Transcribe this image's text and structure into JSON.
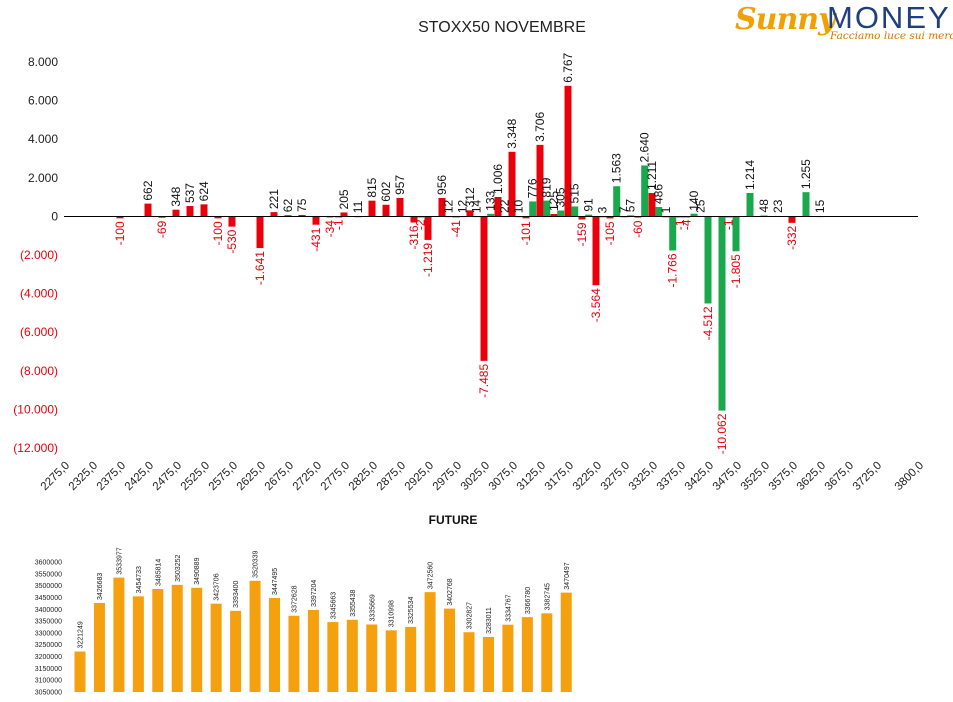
{
  "logo": {
    "brand_first": "Sunny",
    "brand_second": "MONEY",
    "tagline": "Facciamo luce sui mercati"
  },
  "chart_data": [
    {
      "type": "bar",
      "title": "STOXX50 NOVEMBRE",
      "xlabel": "",
      "ylabel": "",
      "ylim": [
        -12000,
        8000
      ],
      "y_ticks": [
        8000,
        6000,
        4000,
        2000,
        0,
        -2000,
        -4000,
        -6000,
        -8000,
        -10000,
        -12000
      ],
      "y_tick_labels": [
        "8.000",
        "6.000",
        "4.000",
        "2.000",
        "0",
        "(2.000)",
        "(4.000)",
        "(6.000)",
        "(8.000)",
        "(10.000)",
        "(12.000)"
      ],
      "x_ticks": [
        "2275,0",
        "2325,0",
        "2375,0",
        "2425,0",
        "2475,0",
        "2525,0",
        "2575,0",
        "2625,0",
        "2675,0",
        "2725,0",
        "2775,0",
        "2825,0",
        "2875,0",
        "2925,0",
        "2975,0",
        "3025,0",
        "3075,0",
        "3125,0",
        "3175,0",
        "3225,0",
        "3275,0",
        "3325,0",
        "3375,0",
        "3425,0",
        "3475,0",
        "3525,0",
        "3575,0",
        "3625,0",
        "3675,0",
        "3725,0",
        "3800,0"
      ],
      "grid": false,
      "legend": "none",
      "colors": {
        "put": "#e8000b",
        "call": "#19a84b"
      },
      "bars": [
        {
          "strike": 2375,
          "value": -100,
          "label": "-100",
          "series": "put"
        },
        {
          "strike": 2425,
          "value": 662,
          "label": "662",
          "series": "put"
        },
        {
          "strike": 2450,
          "value": -69,
          "label": "-69",
          "series": "put"
        },
        {
          "strike": 2475,
          "value": 348,
          "label": "348",
          "series": "put"
        },
        {
          "strike": 2500,
          "value": 537,
          "label": "537",
          "series": "put"
        },
        {
          "strike": 2525,
          "value": 624,
          "label": "624",
          "series": "put"
        },
        {
          "strike": 2550,
          "value": -100,
          "label": "-100",
          "series": "put"
        },
        {
          "strike": 2575,
          "value": -530,
          "label": "-530",
          "series": "put"
        },
        {
          "strike": 2625,
          "value": -1641,
          "label": "-1.641",
          "series": "put"
        },
        {
          "strike": 2650,
          "value": 221,
          "label": "221",
          "series": "put"
        },
        {
          "strike": 2675,
          "value": 62,
          "label": "62",
          "series": "put"
        },
        {
          "strike": 2700,
          "value": 75,
          "label": "75",
          "series": "put"
        },
        {
          "strike": 2725,
          "value": -431,
          "label": "-431",
          "series": "put"
        },
        {
          "strike": 2750,
          "value": -34,
          "label": "-34",
          "series": "put"
        },
        {
          "strike": 2765,
          "value": -1,
          "label": "-1",
          "series": "put"
        },
        {
          "strike": 2775,
          "value": 205,
          "label": "205",
          "series": "put"
        },
        {
          "strike": 2800,
          "value": 11,
          "label": "11",
          "series": "put"
        },
        {
          "strike": 2825,
          "value": 815,
          "label": "815",
          "series": "put"
        },
        {
          "strike": 2850,
          "value": 602,
          "label": "602",
          "series": "put"
        },
        {
          "strike": 2875,
          "value": 957,
          "label": "957",
          "series": "put"
        },
        {
          "strike": 2900,
          "value": -316,
          "label": "-316",
          "series": "put"
        },
        {
          "strike": 2912,
          "value": -2,
          "label": "-2",
          "series": "put"
        },
        {
          "strike": 2925,
          "value": -1219,
          "label": "-1.219",
          "series": "put"
        },
        {
          "strike": 2950,
          "value": 956,
          "label": "956",
          "series": "put"
        },
        {
          "strike": 2962,
          "value": 12,
          "label": "12",
          "series": "call"
        },
        {
          "strike": 2975,
          "value": -41,
          "label": "-41",
          "series": "put"
        },
        {
          "strike": 2987,
          "value": 12,
          "label": "12",
          "series": "call"
        },
        {
          "strike": 3000,
          "value": 312,
          "label": "312",
          "series": "put"
        },
        {
          "strike": 3012,
          "value": 14,
          "label": "14",
          "series": "call"
        },
        {
          "strike": 3025,
          "value": -7485,
          "label": "-7.485",
          "series": "put"
        },
        {
          "strike": 3037,
          "value": 133,
          "label": "133",
          "series": "call"
        },
        {
          "strike": 3050,
          "value": 1006,
          "label": "1.006",
          "series": "put"
        },
        {
          "strike": 3062,
          "value": 22,
          "label": "22",
          "series": "call"
        },
        {
          "strike": 3075,
          "value": 3348,
          "label": "3.348",
          "series": "put"
        },
        {
          "strike": 3087,
          "value": 10,
          "label": "10",
          "series": "call"
        },
        {
          "strike": 3100,
          "value": -101,
          "label": "-101",
          "series": "put"
        },
        {
          "strike": 3112,
          "value": 776,
          "label": "776",
          "series": "call"
        },
        {
          "strike": 3125,
          "value": 3706,
          "label": "3.706",
          "series": "put"
        },
        {
          "strike": 3137,
          "value": 819,
          "label": "819",
          "series": "call"
        },
        {
          "strike": 3150,
          "value": 125,
          "label": "125",
          "series": "put"
        },
        {
          "strike": 3162,
          "value": 305,
          "label": "305",
          "series": "call"
        },
        {
          "strike": 3175,
          "value": 6767,
          "label": "6.767",
          "series": "put"
        },
        {
          "strike": 3187,
          "value": 515,
          "label": "515",
          "series": "call"
        },
        {
          "strike": 3200,
          "value": -159,
          "label": "-159",
          "series": "put"
        },
        {
          "strike": 3212,
          "value": 91,
          "label": "91",
          "series": "call"
        },
        {
          "strike": 3225,
          "value": -3564,
          "label": "-3.564",
          "series": "put"
        },
        {
          "strike": 3237,
          "value": 3,
          "label": "3",
          "series": "call"
        },
        {
          "strike": 3250,
          "value": -105,
          "label": "-105",
          "series": "put"
        },
        {
          "strike": 3262,
          "value": 1563,
          "label": "1.563",
          "series": "call"
        },
        {
          "strike": 3275,
          "value": 7,
          "label": "7",
          "series": "put"
        },
        {
          "strike": 3287,
          "value": 57,
          "label": "57",
          "series": "call"
        },
        {
          "strike": 3300,
          "value": -60,
          "label": "-60",
          "series": "put"
        },
        {
          "strike": 3312,
          "value": 2640,
          "label": "2.640",
          "series": "call"
        },
        {
          "strike": 3325,
          "value": 1211,
          "label": "1.211",
          "series": "put"
        },
        {
          "strike": 3337,
          "value": 486,
          "label": "486",
          "series": "call"
        },
        {
          "strike": 3350,
          "value": 1,
          "label": "1",
          "series": "call"
        },
        {
          "strike": 3362,
          "value": -1766,
          "label": "-1.766",
          "series": "call"
        },
        {
          "strike": 3375,
          "value": -1,
          "label": "-1",
          "series": "put"
        },
        {
          "strike": 3387,
          "value": -4,
          "label": "-4",
          "series": "put"
        },
        {
          "strike": 3400,
          "value": 140,
          "label": "140",
          "series": "call"
        },
        {
          "strike": 3412,
          "value": 25,
          "label": "25",
          "series": "call"
        },
        {
          "strike": 3425,
          "value": -4512,
          "label": "-4.512",
          "series": "call"
        },
        {
          "strike": 3450,
          "value": -10062,
          "label": "-10.062",
          "series": "call"
        },
        {
          "strike": 3462,
          "value": -1,
          "label": "-1",
          "series": "put"
        },
        {
          "strike": 3475,
          "value": -1805,
          "label": "-1.805",
          "series": "call"
        },
        {
          "strike": 3500,
          "value": 1214,
          "label": "1.214",
          "series": "call"
        },
        {
          "strike": 3525,
          "value": 48,
          "label": "48",
          "series": "call"
        },
        {
          "strike": 3550,
          "value": 23,
          "label": "23",
          "series": "call"
        },
        {
          "strike": 3575,
          "value": -332,
          "label": "-332",
          "series": "put"
        },
        {
          "strike": 3600,
          "value": 1255,
          "label": "1.255",
          "series": "call"
        },
        {
          "strike": 3625,
          "value": 15,
          "label": "15",
          "series": "call"
        }
      ]
    },
    {
      "type": "bar",
      "title": "FUTURE",
      "xlabel": "",
      "ylabel": "",
      "ylim": [
        3050000,
        3600000
      ],
      "y_ticks": [
        3600000,
        3550000,
        3500000,
        3450000,
        3400000,
        3350000,
        3300000,
        3250000,
        3200000,
        3150000,
        3100000,
        3050000
      ],
      "y_tick_labels": [
        "3600000",
        "3550000",
        "3500000",
        "3450000",
        "3400000",
        "3350000",
        "3300000",
        "3250000",
        "3200000",
        "3150000",
        "3100000",
        "3050000"
      ],
      "color": "#f5a00f",
      "values": [
        3221249,
        3426683,
        3533977,
        3454733,
        3485814,
        3503252,
        3490889,
        3423706,
        3393400,
        3520339,
        3447495,
        3372628,
        3397204,
        3345663,
        3355438,
        3335669,
        3310998,
        3325534,
        3472560,
        3402768,
        3302827,
        3283011,
        3334767,
        3366780,
        3382745,
        3470497
      ],
      "labels": [
        "3221249",
        "3426683",
        "3533977",
        "3454733",
        "3485814",
        "3503252",
        "3490889",
        "3423706",
        "3393400",
        "3520339",
        "3447495",
        "3372628",
        "3397204",
        "3345663",
        "3355438",
        "3335669",
        "3310998",
        "3325534",
        "3472560",
        "3402768",
        "3302827",
        "3283011",
        "3334767",
        "3366780",
        "3382745",
        "3470497"
      ]
    }
  ]
}
